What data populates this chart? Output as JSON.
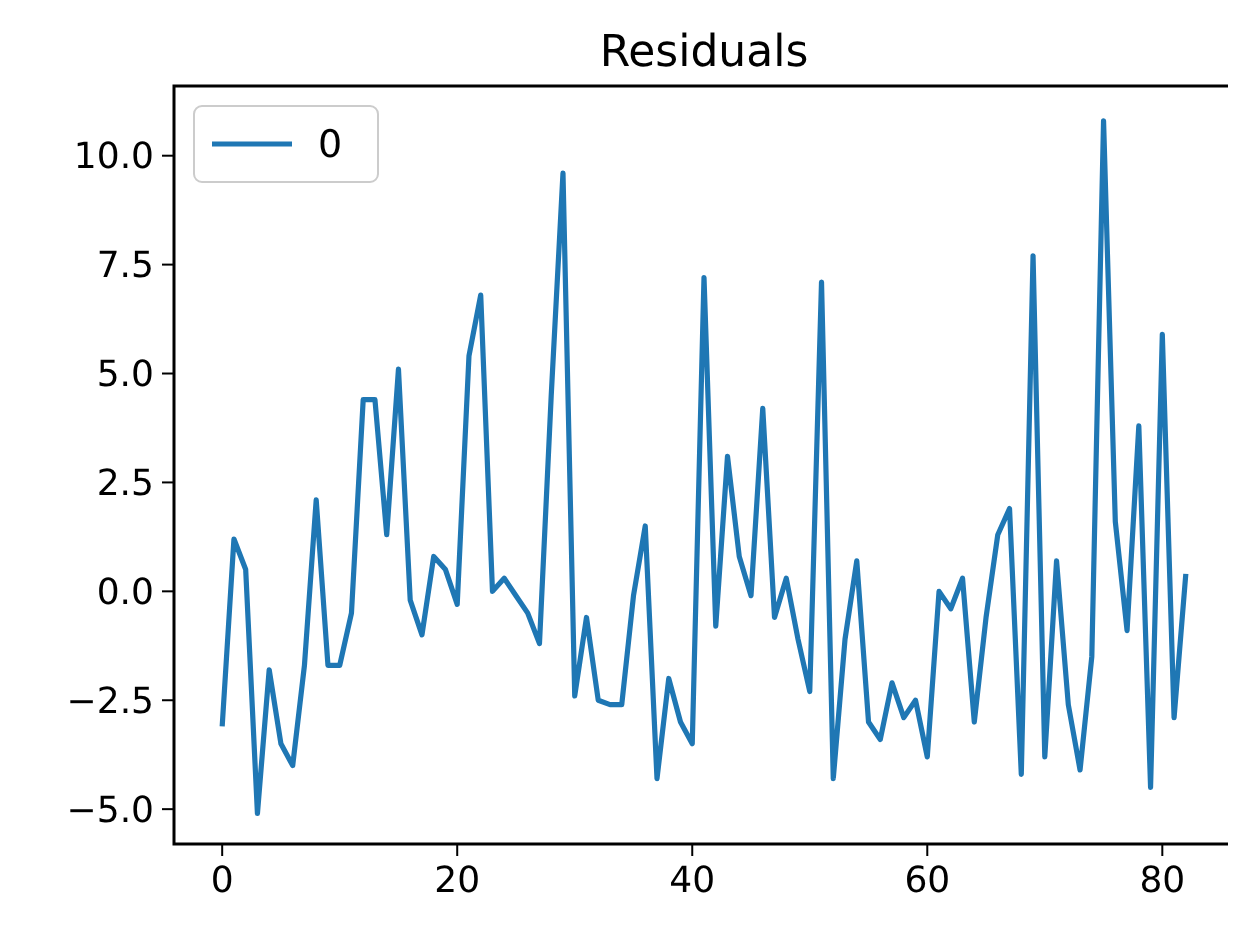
{
  "chart_data": {
    "type": "line",
    "title": "Residuals",
    "x": [
      0,
      1,
      2,
      3,
      4,
      5,
      6,
      7,
      8,
      9,
      10,
      11,
      12,
      13,
      14,
      15,
      16,
      17,
      18,
      19,
      20,
      21,
      22,
      23,
      24,
      25,
      26,
      27,
      28,
      29,
      30,
      31,
      32,
      33,
      34,
      35,
      36,
      37,
      38,
      39,
      40,
      41,
      42,
      43,
      44,
      45,
      46,
      47,
      48,
      49,
      50,
      51,
      52,
      53,
      54,
      55,
      56,
      57,
      58,
      59,
      60,
      61,
      62,
      63,
      64,
      65,
      66,
      67,
      68,
      69,
      70,
      71,
      72,
      73,
      74,
      75,
      76,
      77,
      78,
      79,
      80,
      81,
      82
    ],
    "series": [
      {
        "name": "0",
        "color": "#1f77b4",
        "values": [
          -3.1,
          1.2,
          0.5,
          -5.1,
          -1.8,
          -3.5,
          -4.0,
          -1.7,
          2.1,
          -1.7,
          -1.7,
          -0.5,
          4.4,
          4.4,
          1.3,
          5.1,
          -0.2,
          -1.0,
          0.8,
          0.5,
          -0.3,
          5.4,
          6.8,
          0.0,
          0.3,
          -0.1,
          -0.5,
          -1.2,
          4.5,
          9.6,
          -2.4,
          -0.6,
          -2.5,
          -2.6,
          -2.6,
          -0.1,
          1.5,
          -4.3,
          -2.0,
          -3.0,
          -3.5,
          7.2,
          -0.8,
          3.1,
          0.8,
          -0.1,
          4.2,
          -0.6,
          0.3,
          -1.1,
          -2.3,
          7.1,
          -4.3,
          -1.1,
          0.7,
          -3.0,
          -3.4,
          -2.1,
          -2.9,
          -2.5,
          -3.8,
          0.0,
          -0.4,
          0.3,
          -3.0,
          -0.6,
          1.3,
          1.9,
          -4.2,
          7.7,
          -3.8,
          0.7,
          -2.6,
          -4.1,
          -1.5,
          10.8,
          1.6,
          -0.9,
          3.8,
          -4.5,
          5.9,
          -2.9,
          0.4
        ]
      }
    ],
    "xlim": [
      -4.1,
      86.1
    ],
    "xticks": [
      0,
      20,
      40,
      60,
      80
    ],
    "ylim": [
      -5.8,
      11.6
    ],
    "yticks": [
      {
        "value": -5,
        "label": "−5.0"
      },
      {
        "value": -2.5,
        "label": "−2.5"
      },
      {
        "value": 0,
        "label": "0.0"
      },
      {
        "value": 2.5,
        "label": "2.5"
      },
      {
        "value": 5,
        "label": "5.0"
      },
      {
        "value": 7.5,
        "label": "7.5"
      },
      {
        "value": 10,
        "label": "10.0"
      }
    ],
    "legend": "top left",
    "grid": false,
    "marker": "none",
    "line_style": "solid"
  }
}
